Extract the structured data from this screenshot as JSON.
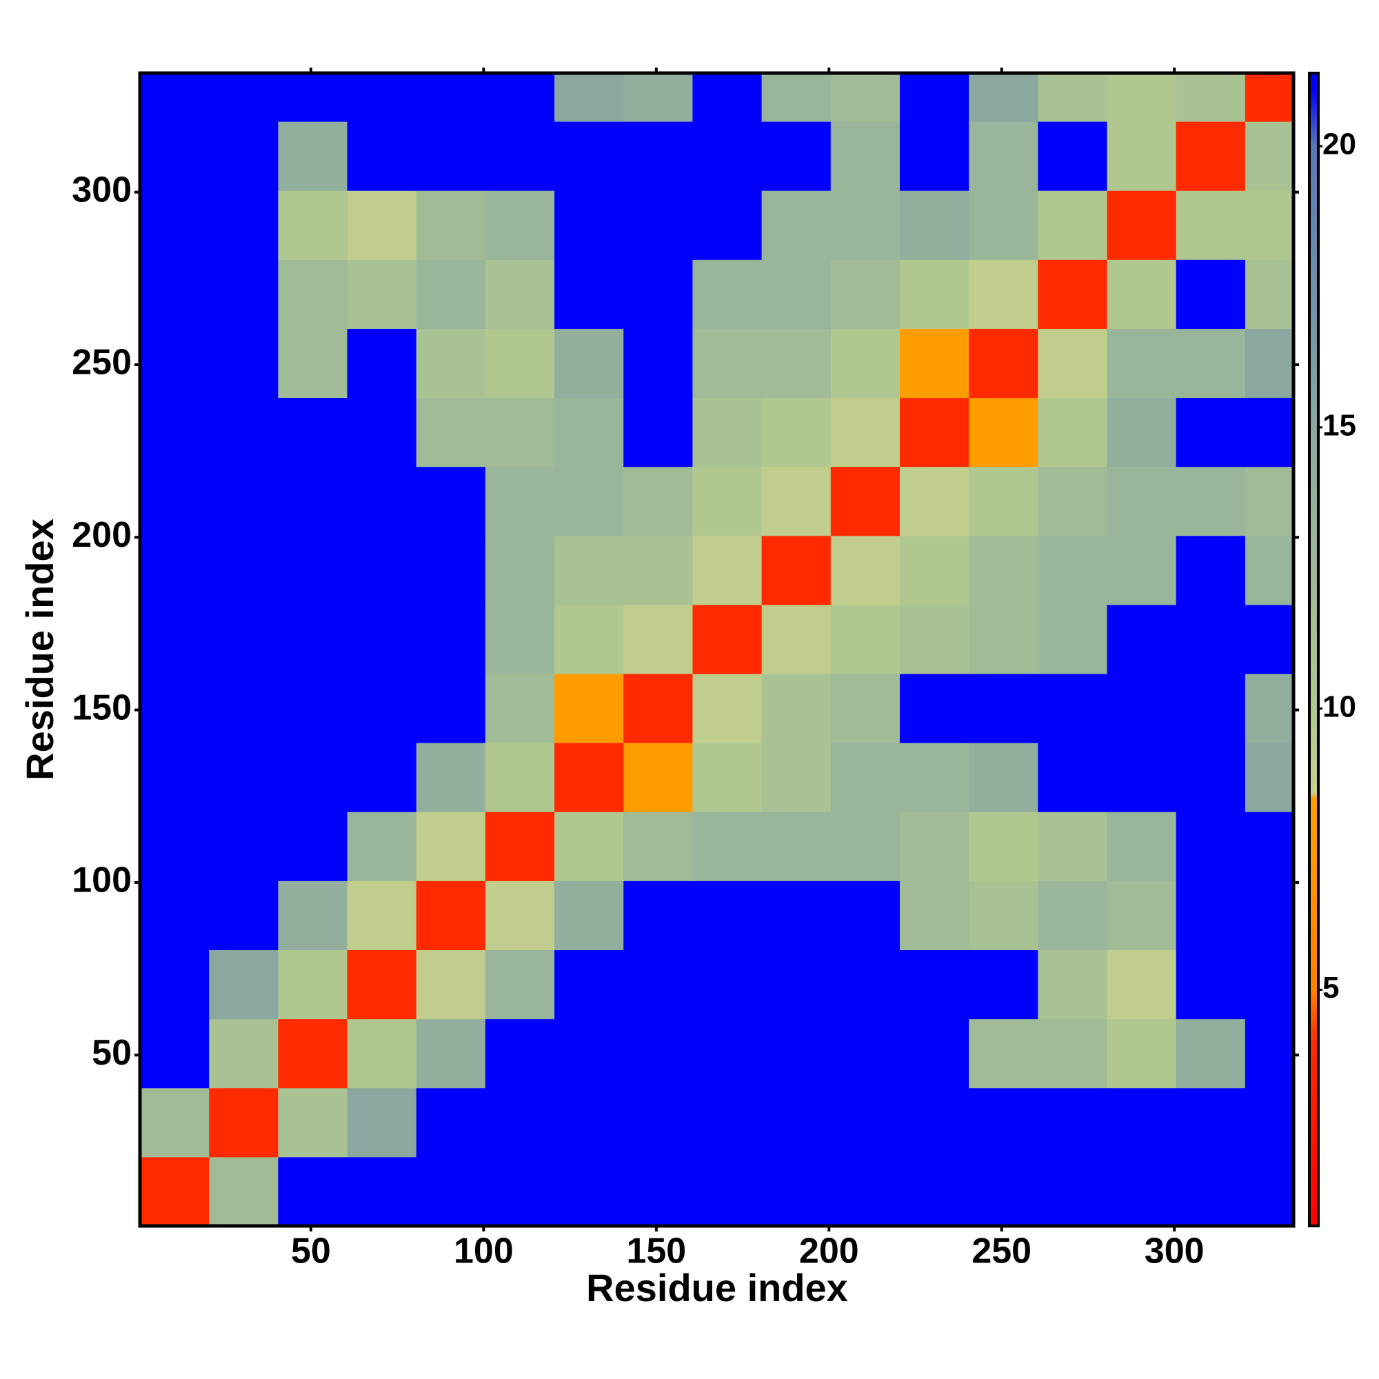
{
  "chart_data": {
    "type": "heatmap",
    "x_label": "Residue index",
    "y_label": "Residue index",
    "xlim": [
      0.5,
      334.5
    ],
    "ylim": [
      0.5,
      334.5
    ],
    "xticks": [
      50,
      100,
      150,
      200,
      250,
      300
    ],
    "yticks": [
      50,
      100,
      150,
      200,
      250,
      300
    ],
    "zlim": [
      0.8,
      21.3
    ],
    "zticks": [
      5,
      10,
      15,
      20
    ],
    "colorscale": [
      [
        0.8,
        "#ff0000"
      ],
      [
        4,
        "#ff2a00"
      ],
      [
        5,
        "#ff8000"
      ],
      [
        8.4,
        "#ffa000"
      ],
      [
        8.5,
        "#c8d08c"
      ],
      [
        10,
        "#b0c890"
      ],
      [
        15,
        "#8aa8a0"
      ],
      [
        20,
        "#5878b8"
      ],
      [
        21,
        "#0000ff"
      ]
    ],
    "x_edges": [
      0.5,
      20.5,
      40.5,
      60.5,
      80.5,
      100.5,
      120.5,
      140.5,
      160.5,
      180.5,
      200.5,
      220.5,
      240.5,
      260.5,
      280.5,
      300.5,
      320.5,
      334.5
    ],
    "y_edges": [
      0.5,
      20.5,
      40.5,
      60.5,
      80.5,
      100.5,
      120.5,
      140.5,
      160.5,
      180.5,
      200.5,
      220.5,
      240.5,
      260.5,
      280.5,
      300.5,
      320.5,
      334.5
    ],
    "z": [
      [
        4,
        12,
        21,
        21,
        21,
        21,
        21,
        21,
        21,
        21,
        21,
        21,
        21,
        21,
        21,
        21,
        21
      ],
      [
        12,
        4,
        11,
        15,
        21,
        21,
        21,
        21,
        21,
        21,
        21,
        21,
        21,
        21,
        21,
        21,
        21
      ],
      [
        21,
        11,
        4,
        10,
        14,
        21,
        21,
        21,
        21,
        21,
        21,
        21,
        12,
        12,
        10,
        14,
        21
      ],
      [
        21,
        15,
        10,
        4,
        9,
        13,
        21,
        21,
        21,
        21,
        21,
        21,
        21,
        11,
        9,
        21,
        21
      ],
      [
        21,
        21,
        14,
        9,
        4,
        9,
        14,
        21,
        21,
        21,
        21,
        12,
        11,
        13,
        12,
        21,
        21
      ],
      [
        21,
        21,
        21,
        13,
        9,
        4,
        10,
        12,
        13,
        13,
        13,
        12,
        10,
        11,
        13,
        21,
        21
      ],
      [
        21,
        21,
        21,
        21,
        14,
        10,
        4,
        8,
        10,
        11,
        13,
        13,
        14,
        21,
        21,
        21,
        15
      ],
      [
        21,
        21,
        21,
        21,
        21,
        12,
        8,
        4,
        9,
        11,
        12,
        21,
        21,
        21,
        21,
        21,
        14
      ],
      [
        21,
        21,
        21,
        21,
        21,
        13,
        10,
        9,
        4,
        9,
        10,
        11,
        12,
        13,
        21,
        21,
        21
      ],
      [
        21,
        21,
        21,
        21,
        21,
        13,
        11,
        11,
        9,
        4,
        9,
        10,
        12,
        13,
        13,
        21,
        13
      ],
      [
        21,
        21,
        21,
        21,
        21,
        13,
        13,
        12,
        10,
        9,
        4,
        9,
        10,
        12,
        13,
        13,
        12
      ],
      [
        21,
        21,
        21,
        21,
        12,
        12,
        13,
        21,
        11,
        10,
        9,
        4,
        8,
        10,
        14,
        21,
        21
      ],
      [
        21,
        21,
        12,
        21,
        11,
        10,
        14,
        21,
        12,
        12,
        10,
        8,
        4,
        9,
        13,
        13,
        15
      ],
      [
        21,
        21,
        12,
        11,
        13,
        11,
        21,
        21,
        13,
        13,
        12,
        10,
        9,
        4,
        10,
        21,
        11
      ],
      [
        21,
        21,
        10,
        9,
        12,
        13,
        21,
        21,
        21,
        13,
        13,
        14,
        13,
        10,
        4,
        10,
        10
      ],
      [
        21,
        21,
        14,
        21,
        21,
        21,
        21,
        21,
        21,
        21,
        13,
        21,
        13,
        21,
        10,
        4,
        11
      ],
      [
        21,
        21,
        21,
        21,
        21,
        21,
        15,
        14,
        21,
        13,
        12,
        21,
        15,
        11,
        10,
        11,
        4
      ]
    ]
  }
}
